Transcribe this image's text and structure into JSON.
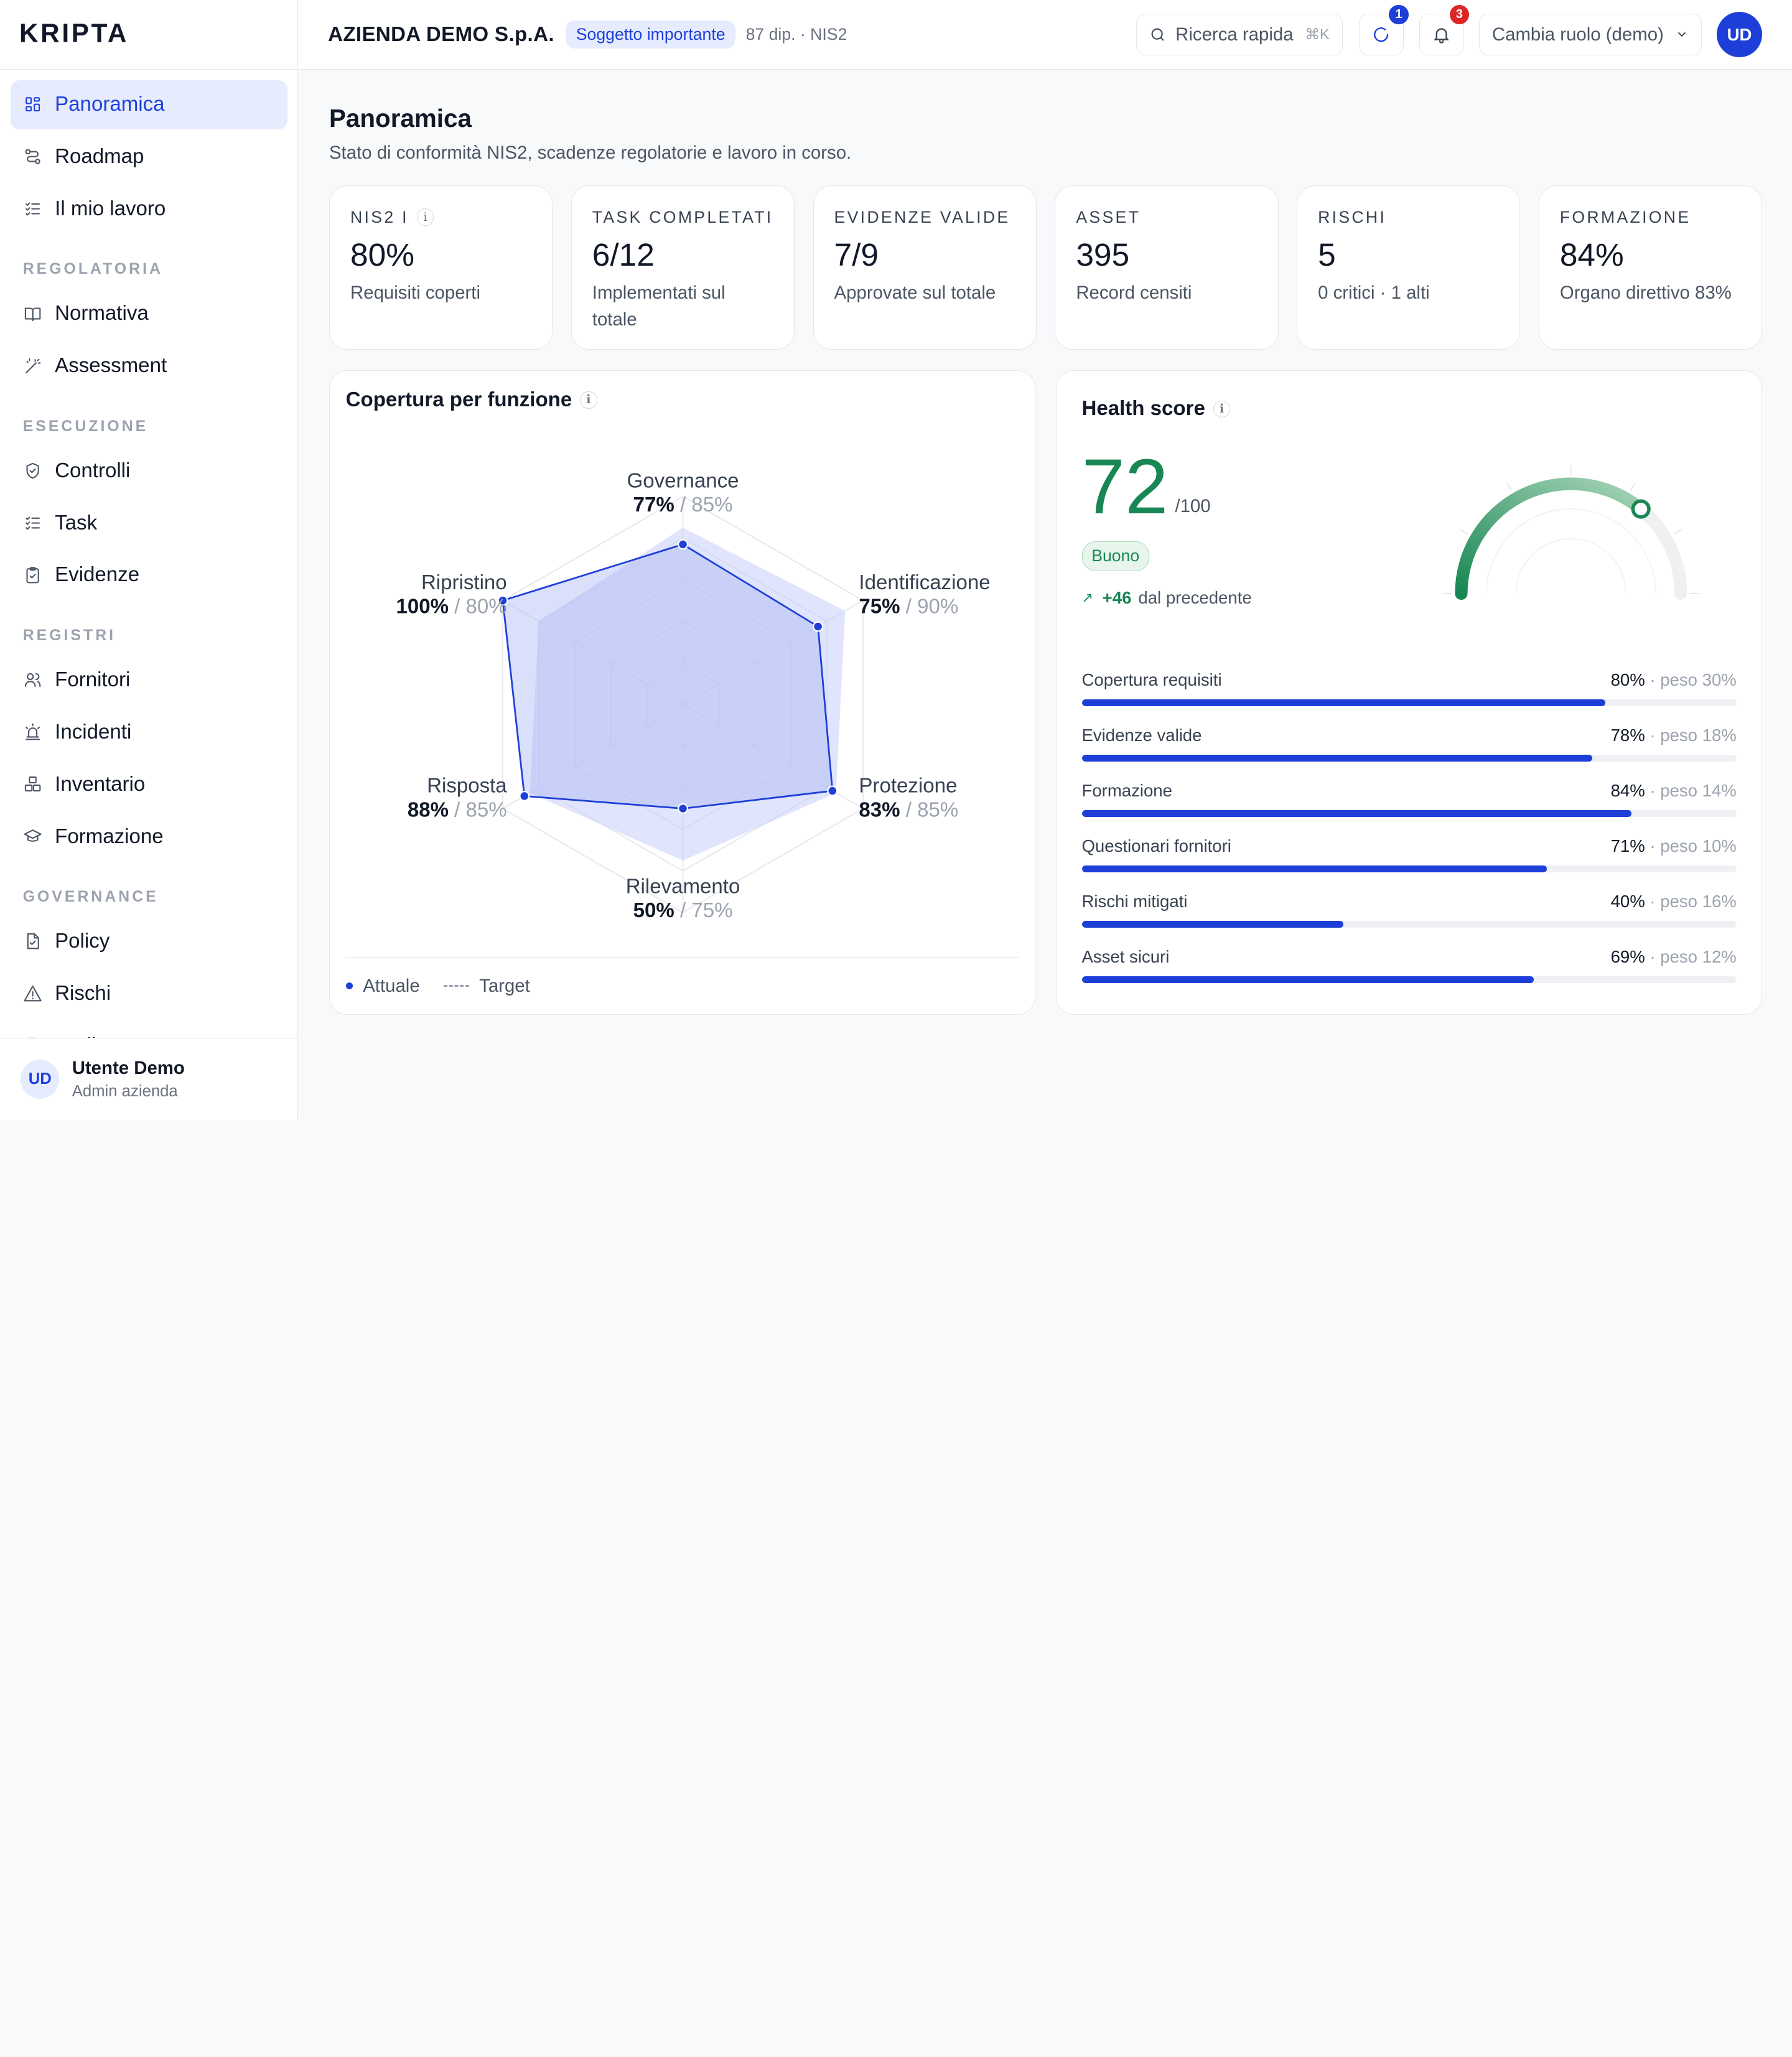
{
  "brand": {
    "logo_text": "KRIPTA"
  },
  "header": {
    "company": "AZIENDA DEMO S.p.A.",
    "badge": "Soggetto importante",
    "meta": "87 dip. · NIS2",
    "search_placeholder": "Ricerca rapida",
    "search_shortcut": "⌘K",
    "sync_badge": "1",
    "notifications_badge": "3",
    "role_select": "Cambia ruolo (demo)",
    "avatar": "UD"
  },
  "sidebar": {
    "top": [
      {
        "label": "Panoramica",
        "icon": "grid-icon",
        "active": true
      },
      {
        "label": "Roadmap",
        "icon": "roadmap-icon"
      },
      {
        "label": "Il mio lavoro",
        "icon": "checklist-icon"
      }
    ],
    "sections": [
      {
        "title": "REGOLATORIA",
        "items": [
          {
            "label": "Normativa",
            "icon": "book-icon"
          },
          {
            "label": "Assessment",
            "icon": "wand-icon"
          }
        ]
      },
      {
        "title": "ESECUZIONE",
        "items": [
          {
            "label": "Controlli",
            "icon": "shield-icon"
          },
          {
            "label": "Task",
            "icon": "checklist-icon"
          },
          {
            "label": "Evidenze",
            "icon": "clipboard-icon"
          }
        ]
      },
      {
        "title": "REGISTRI",
        "items": [
          {
            "label": "Fornitori",
            "icon": "users-icon"
          },
          {
            "label": "Incidenti",
            "icon": "siren-icon"
          },
          {
            "label": "Inventario",
            "icon": "boxes-icon"
          },
          {
            "label": "Formazione",
            "icon": "graduation-icon"
          }
        ]
      },
      {
        "title": "GOVERNANCE",
        "items": [
          {
            "label": "Policy",
            "icon": "file-check-icon"
          },
          {
            "label": "Rischi",
            "icon": "warning-icon"
          },
          {
            "label": "Audit",
            "icon": "file-icon"
          }
        ]
      }
    ],
    "user": {
      "initials": "UD",
      "name": "Utente Demo",
      "role": "Admin azienda"
    }
  },
  "page": {
    "title": "Panoramica",
    "subtitle": "Stato di conformità NIS2, scadenze regolatorie e lavoro in corso."
  },
  "kpis": [
    {
      "label": "NIS2 I",
      "value": "80%",
      "sub": "Requisiti coperti",
      "info": true
    },
    {
      "label": "TASK COMPLETATI",
      "value": "6/12",
      "sub": "Implementati sul totale"
    },
    {
      "label": "EVIDENZE VALIDE",
      "value": "7/9",
      "sub": "Approvate sul totale"
    },
    {
      "label": "ASSET",
      "value": "395",
      "sub": "Record censiti"
    },
    {
      "label": "RISCHI",
      "value": "5",
      "sub": "0 critici · 1 alti"
    },
    {
      "label": "FORMAZIONE",
      "value": "84%",
      "sub": "Organo direttivo 83%"
    }
  ],
  "radar": {
    "title": "Copertura per funzione",
    "legend_actual": "Attuale",
    "legend_target": "Target",
    "colors": {
      "actual": "#1d3fd8",
      "target_fill": "#c7cdfa"
    }
  },
  "chart_data": {
    "type": "radar",
    "categories": [
      "Governance",
      "Identificazione",
      "Protezione",
      "Rilevamento",
      "Risposta",
      "Ripristino"
    ],
    "series": [
      {
        "name": "Attuale",
        "values": [
          77,
          75,
          83,
          50,
          88,
          100
        ]
      },
      {
        "name": "Target",
        "values": [
          85,
          90,
          85,
          75,
          85,
          80
        ]
      }
    ],
    "ylim": [
      0,
      100
    ]
  },
  "health": {
    "title": "Health score",
    "score": "72",
    "max": "/100",
    "rating": "Buono",
    "delta": "+46",
    "delta_text": "dal precedente",
    "score_value": 72,
    "colors": {
      "good": "#198754",
      "bar": "#1d3fd8"
    },
    "metrics": [
      {
        "label": "Copertura requisiti",
        "value": "80%",
        "weight": "· peso 30%",
        "pct": 80
      },
      {
        "label": "Evidenze valide",
        "value": "78%",
        "weight": "· peso 18%",
        "pct": 78
      },
      {
        "label": "Formazione",
        "value": "84%",
        "weight": "· peso 14%",
        "pct": 84
      },
      {
        "label": "Questionari fornitori",
        "value": "71%",
        "weight": "· peso 10%",
        "pct": 71
      },
      {
        "label": "Rischi mitigati",
        "value": "40%",
        "weight": "· peso 16%",
        "pct": 40
      },
      {
        "label": "Asset sicuri",
        "value": "69%",
        "weight": "· peso 12%",
        "pct": 69
      }
    ]
  }
}
